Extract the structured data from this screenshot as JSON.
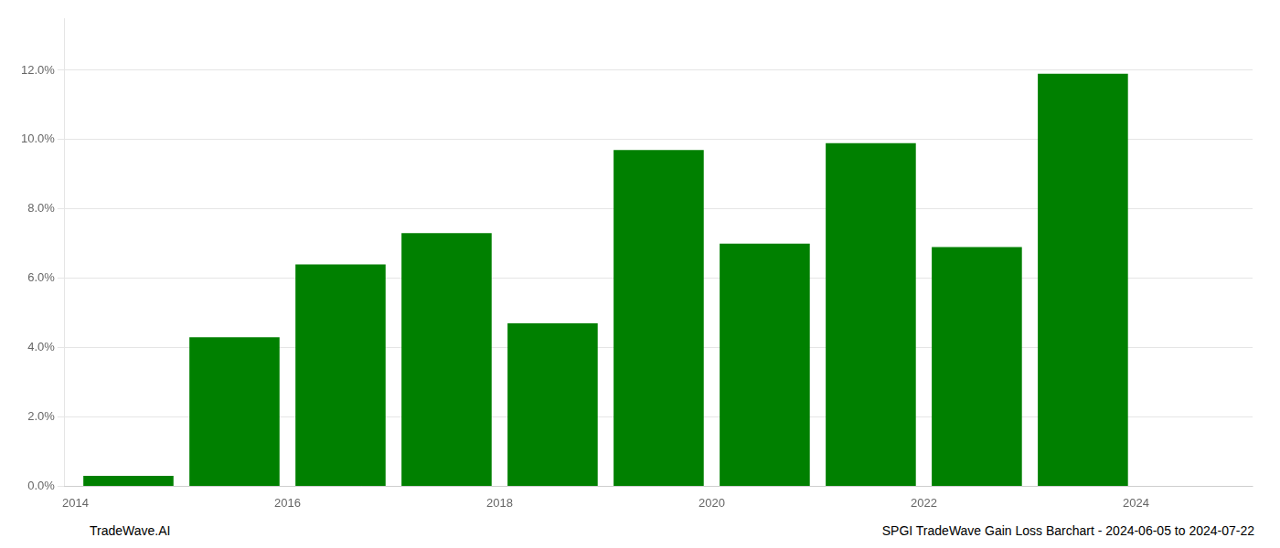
{
  "chart_data": {
    "type": "bar",
    "x": [
      2014.5,
      2015.5,
      2016.5,
      2017.5,
      2018.5,
      2019.5,
      2020.5,
      2021.5,
      2022.5,
      2023.5
    ],
    "values": [
      0.003,
      0.043,
      0.064,
      0.073,
      0.047,
      0.097,
      0.07,
      0.099,
      0.069,
      0.119
    ],
    "color": "#008000",
    "xlim": [
      2013.9,
      2025.1
    ],
    "xticks": [
      2014,
      2016,
      2018,
      2020,
      2022,
      2024
    ],
    "ylim": [
      0,
      0.135
    ],
    "yticks": [
      {
        "value": 0.0,
        "label": "0.0%"
      },
      {
        "value": 0.02,
        "label": "2.0%"
      },
      {
        "value": 0.04,
        "label": "4.0%"
      },
      {
        "value": 0.06,
        "label": "6.0%"
      },
      {
        "value": 0.08,
        "label": "8.0%"
      },
      {
        "value": 0.1,
        "label": "10.0%"
      },
      {
        "value": 0.12,
        "label": "12.0%"
      }
    ],
    "grid": true,
    "annotations": [
      "TradeWave.AI",
      "SPGI TradeWave Gain Loss Barchart - 2024-06-05 to 2024-07-22"
    ]
  }
}
